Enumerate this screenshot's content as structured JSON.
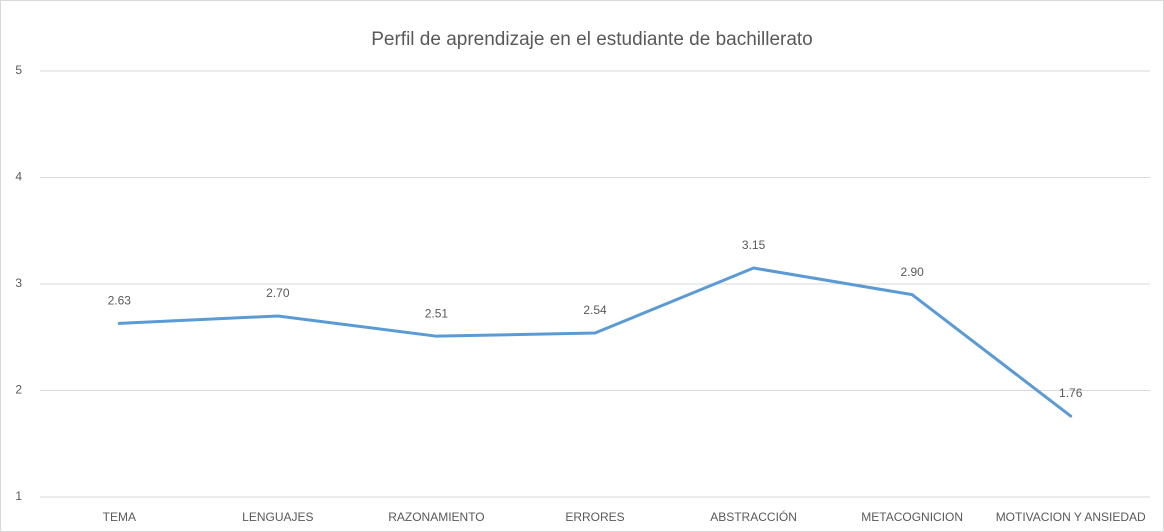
{
  "chart_data": {
    "type": "line",
    "title": "Perfil de aprendizaje en el estudiante de bachillerato",
    "categories": [
      "TEMA",
      "LENGUAJES",
      "RAZONAMIENTO",
      "ERRORES",
      "ABSTRACCIÓN",
      "METACOGNICION",
      "MOTIVACION Y ANSIEDAD"
    ],
    "values": [
      2.63,
      2.7,
      2.51,
      2.54,
      3.15,
      2.9,
      1.76
    ],
    "value_labels": [
      "2.63",
      "2.70",
      "2.51",
      "2.54",
      "3.15",
      "2.90",
      "1.76"
    ],
    "color": "#5b9bd5",
    "ylim": [
      1,
      5
    ],
    "yticks": [
      1,
      2,
      3,
      4,
      5
    ],
    "grid": true
  }
}
